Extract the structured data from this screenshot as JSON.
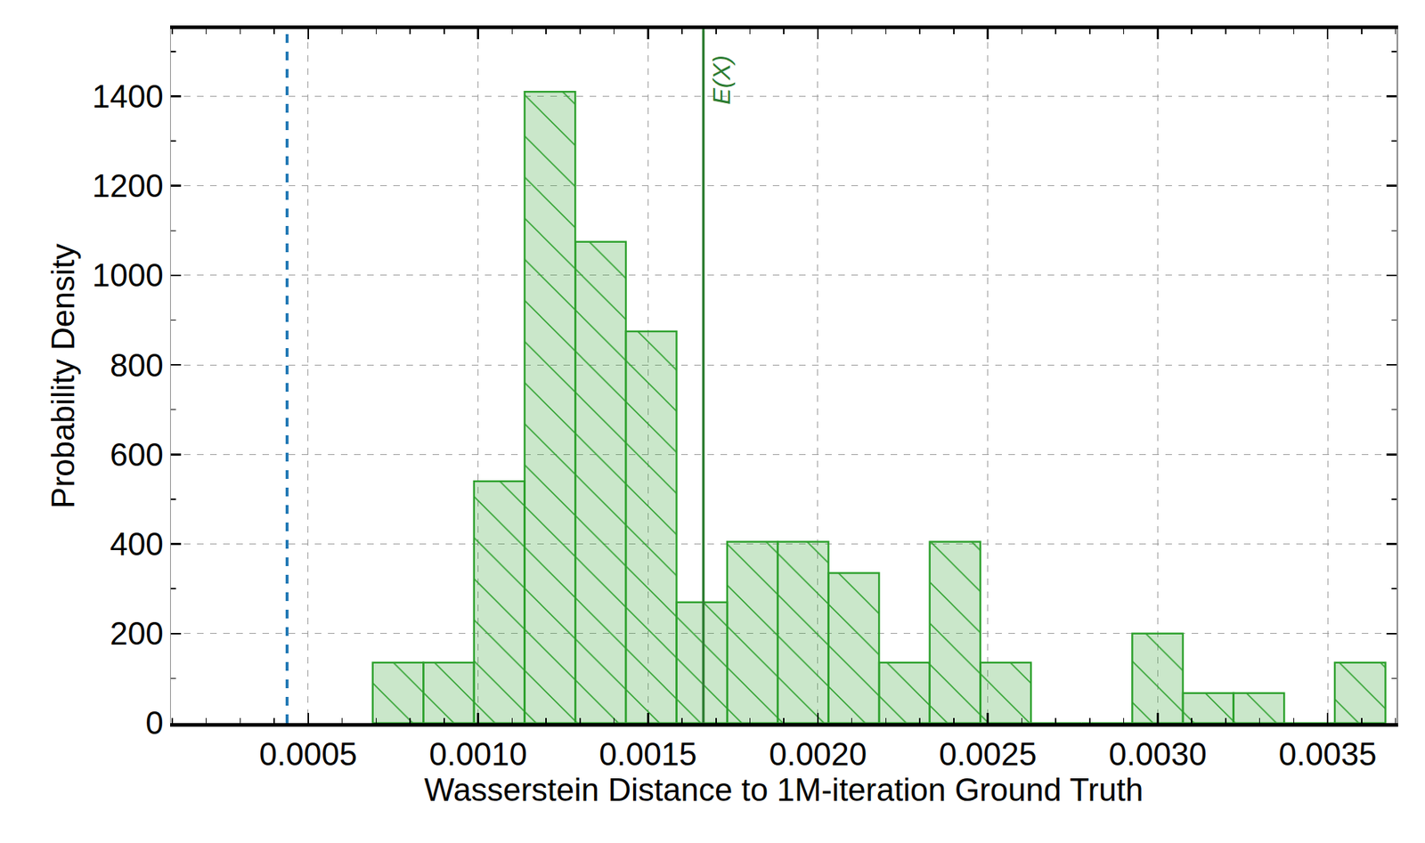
{
  "chart_data": {
    "type": "histogram",
    "x_label": "Wasserstein Distance to 1M-iteration Ground Truth",
    "y_label": "Probability Density",
    "bins": [
      0.00069,
      0.000839,
      0.000988,
      0.001137,
      0.001286,
      0.001435,
      0.001584,
      0.001733,
      0.001882,
      0.002031,
      0.00218,
      0.002329,
      0.002478,
      0.002627,
      0.002776,
      0.002925,
      0.003074,
      0.003223,
      0.003372,
      0.003521,
      0.00367
    ],
    "values": [
      135,
      135,
      540,
      1410,
      1075,
      875,
      270,
      405,
      405,
      335,
      135,
      405,
      135,
      0,
      0,
      200,
      67,
      67,
      0,
      135
    ],
    "color": "#2ca02c",
    "vlines": [
      {
        "x": 0.000438,
        "color": "#1f77b4",
        "line_style": "dashed"
      },
      {
        "x": 0.001663,
        "color": "#2e7d32",
        "line_style": "solid",
        "label": "E(X)"
      }
    ],
    "xlim": [
      9.6e-05,
      0.003703
    ],
    "xticks": [
      0.0005,
      {
        "value": 0.001,
        "label": "0.0010"
      },
      {
        "value": 0.0015,
        "label": "0.0015"
      },
      {
        "value": 0.002,
        "label": "0.0020"
      },
      {
        "value": 0.0025,
        "label": "0.0025"
      },
      {
        "value": 0.003,
        "label": "0.0030"
      },
      {
        "value": 0.0035,
        "label": "0.0035"
      }
    ],
    "ylim": [
      0,
      1550
    ],
    "yticks": [
      0,
      200,
      400,
      600,
      800,
      1000,
      1200,
      1400
    ],
    "grid": true
  }
}
